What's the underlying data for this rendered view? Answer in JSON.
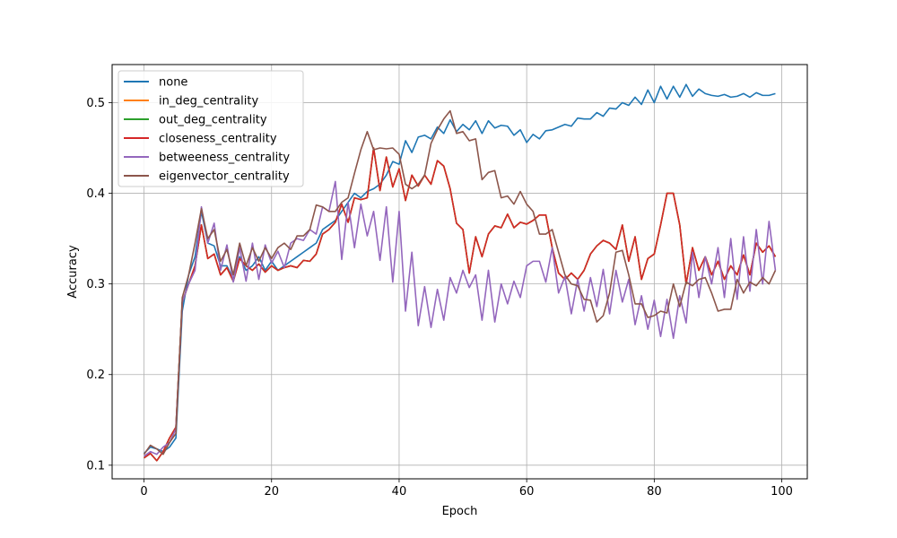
{
  "chart_data": {
    "type": "line",
    "title": "",
    "xlabel": "Epoch",
    "ylabel": "Accuracy",
    "xlim": [
      -5,
      104
    ],
    "ylim": [
      0.085,
      0.542
    ],
    "xticks": [
      0,
      20,
      40,
      60,
      80,
      100
    ],
    "yticks": [
      0.1,
      0.2,
      0.3,
      0.4,
      0.5
    ],
    "grid": true,
    "legend_position": "top-left",
    "series": [
      {
        "name": "none",
        "color": "#1f77b4",
        "values": [
          0.113,
          0.12,
          0.118,
          0.115,
          0.12,
          0.13,
          0.27,
          0.31,
          0.33,
          0.38,
          0.345,
          0.342,
          0.32,
          0.32,
          0.305,
          0.33,
          0.315,
          0.32,
          0.33,
          0.315,
          0.325,
          0.315,
          0.32,
          0.325,
          0.33,
          0.335,
          0.34,
          0.345,
          0.36,
          0.365,
          0.37,
          0.38,
          0.39,
          0.4,
          0.395,
          0.402,
          0.405,
          0.41,
          0.42,
          0.435,
          0.432,
          0.458,
          0.445,
          0.462,
          0.464,
          0.46,
          0.473,
          0.466,
          0.481,
          0.468,
          0.476,
          0.47,
          0.48,
          0.466,
          0.48,
          0.472,
          0.475,
          0.474,
          0.464,
          0.47,
          0.456,
          0.465,
          0.46,
          0.469,
          0.47,
          0.473,
          0.476,
          0.474,
          0.483,
          0.482,
          0.482,
          0.489,
          0.485,
          0.494,
          0.493,
          0.5,
          0.497,
          0.506,
          0.498,
          0.514,
          0.5,
          0.518,
          0.504,
          0.518,
          0.506,
          0.52,
          0.507,
          0.515,
          0.51,
          0.508,
          0.507,
          0.509,
          0.506,
          0.507,
          0.51,
          0.506,
          0.511,
          0.508,
          0.508,
          0.51
        ]
      },
      {
        "name": "in_deg_centrality",
        "color": "#ff7f0e",
        "values": [
          0.108,
          0.113,
          0.105,
          0.115,
          0.13,
          0.142,
          0.28,
          0.3,
          0.32,
          0.365,
          0.328,
          0.333,
          0.31,
          0.318,
          0.303,
          0.328,
          0.32,
          0.315,
          0.322,
          0.313,
          0.32,
          0.315,
          0.318,
          0.32,
          0.318,
          0.326,
          0.325,
          0.333,
          0.355,
          0.36,
          0.368,
          0.388,
          0.368,
          0.395,
          0.393,
          0.395,
          0.45,
          0.403,
          0.44,
          0.407,
          0.427,
          0.392,
          0.42,
          0.408,
          0.42,
          0.41,
          0.436,
          0.43,
          0.405,
          0.367,
          0.36,
          0.312,
          0.352,
          0.33,
          0.355,
          0.364,
          0.362,
          0.377,
          0.362,
          0.368,
          0.366,
          0.37,
          0.376,
          0.376,
          0.34,
          0.312,
          0.305,
          0.312,
          0.305,
          0.315,
          0.333,
          0.342,
          0.348,
          0.345,
          0.338,
          0.365,
          0.325,
          0.352,
          0.305,
          0.328,
          0.333,
          0.365,
          0.4,
          0.4,
          0.365,
          0.3,
          0.34,
          0.315,
          0.33,
          0.31,
          0.325,
          0.305,
          0.32,
          0.31,
          0.332,
          0.31,
          0.345,
          0.335,
          0.342,
          0.33
        ]
      },
      {
        "name": "out_deg_centrality",
        "color": "#2ca02c",
        "values": [
          0.108,
          0.113,
          0.105,
          0.115,
          0.13,
          0.142,
          0.28,
          0.3,
          0.32,
          0.365,
          0.328,
          0.333,
          0.31,
          0.318,
          0.303,
          0.328,
          0.32,
          0.315,
          0.322,
          0.313,
          0.32,
          0.315,
          0.318,
          0.32,
          0.318,
          0.326,
          0.325,
          0.333,
          0.355,
          0.36,
          0.368,
          0.388,
          0.368,
          0.395,
          0.393,
          0.395,
          0.45,
          0.403,
          0.44,
          0.407,
          0.427,
          0.392,
          0.42,
          0.408,
          0.42,
          0.41,
          0.436,
          0.43,
          0.405,
          0.367,
          0.36,
          0.312,
          0.352,
          0.33,
          0.355,
          0.364,
          0.362,
          0.377,
          0.362,
          0.368,
          0.366,
          0.37,
          0.376,
          0.376,
          0.34,
          0.312,
          0.305,
          0.312,
          0.305,
          0.315,
          0.333,
          0.342,
          0.348,
          0.345,
          0.338,
          0.365,
          0.325,
          0.352,
          0.305,
          0.328,
          0.333,
          0.365,
          0.4,
          0.4,
          0.365,
          0.3,
          0.34,
          0.315,
          0.33,
          0.31,
          0.325,
          0.305,
          0.32,
          0.31,
          0.332,
          0.31,
          0.345,
          0.335,
          0.342,
          0.33
        ]
      },
      {
        "name": "closeness_centrality",
        "color": "#d62728",
        "values": [
          0.108,
          0.113,
          0.105,
          0.115,
          0.13,
          0.142,
          0.28,
          0.3,
          0.32,
          0.365,
          0.328,
          0.333,
          0.31,
          0.318,
          0.303,
          0.328,
          0.32,
          0.315,
          0.322,
          0.313,
          0.32,
          0.315,
          0.318,
          0.32,
          0.318,
          0.326,
          0.325,
          0.333,
          0.355,
          0.36,
          0.368,
          0.388,
          0.368,
          0.395,
          0.393,
          0.395,
          0.45,
          0.403,
          0.44,
          0.407,
          0.427,
          0.392,
          0.42,
          0.408,
          0.42,
          0.41,
          0.436,
          0.43,
          0.405,
          0.367,
          0.36,
          0.312,
          0.352,
          0.33,
          0.355,
          0.364,
          0.362,
          0.377,
          0.362,
          0.368,
          0.366,
          0.37,
          0.376,
          0.376,
          0.34,
          0.312,
          0.305,
          0.312,
          0.305,
          0.315,
          0.333,
          0.342,
          0.348,
          0.345,
          0.338,
          0.365,
          0.325,
          0.352,
          0.305,
          0.328,
          0.333,
          0.365,
          0.4,
          0.4,
          0.365,
          0.3,
          0.34,
          0.315,
          0.33,
          0.31,
          0.325,
          0.305,
          0.32,
          0.31,
          0.332,
          0.31,
          0.345,
          0.335,
          0.342,
          0.33
        ]
      },
      {
        "name": "betweeness_centrality",
        "color": "#9467bd",
        "values": [
          0.11,
          0.115,
          0.112,
          0.12,
          0.125,
          0.14,
          0.28,
          0.3,
          0.315,
          0.385,
          0.345,
          0.367,
          0.315,
          0.343,
          0.302,
          0.34,
          0.303,
          0.345,
          0.305,
          0.343,
          0.323,
          0.336,
          0.318,
          0.345,
          0.35,
          0.348,
          0.36,
          0.355,
          0.385,
          0.38,
          0.413,
          0.327,
          0.39,
          0.34,
          0.388,
          0.353,
          0.38,
          0.326,
          0.385,
          0.302,
          0.38,
          0.27,
          0.335,
          0.254,
          0.297,
          0.252,
          0.294,
          0.26,
          0.307,
          0.29,
          0.315,
          0.296,
          0.31,
          0.26,
          0.315,
          0.258,
          0.3,
          0.278,
          0.303,
          0.285,
          0.32,
          0.325,
          0.325,
          0.302,
          0.34,
          0.29,
          0.308,
          0.267,
          0.305,
          0.27,
          0.307,
          0.275,
          0.316,
          0.267,
          0.315,
          0.28,
          0.305,
          0.255,
          0.287,
          0.25,
          0.282,
          0.242,
          0.283,
          0.24,
          0.287,
          0.257,
          0.335,
          0.285,
          0.33,
          0.3,
          0.34,
          0.285,
          0.35,
          0.283,
          0.352,
          0.292,
          0.36,
          0.3,
          0.369,
          0.315
        ]
      },
      {
        "name": "eigenvector_centrality",
        "color": "#8c564b",
        "values": [
          0.112,
          0.122,
          0.118,
          0.112,
          0.125,
          0.135,
          0.285,
          0.31,
          0.345,
          0.383,
          0.35,
          0.36,
          0.325,
          0.338,
          0.31,
          0.345,
          0.32,
          0.34,
          0.325,
          0.34,
          0.328,
          0.34,
          0.345,
          0.338,
          0.353,
          0.353,
          0.36,
          0.387,
          0.385,
          0.38,
          0.38,
          0.39,
          0.395,
          0.422,
          0.448,
          0.468,
          0.448,
          0.45,
          0.449,
          0.45,
          0.443,
          0.41,
          0.405,
          0.41,
          0.42,
          0.455,
          0.47,
          0.482,
          0.491,
          0.466,
          0.468,
          0.458,
          0.46,
          0.415,
          0.423,
          0.425,
          0.395,
          0.397,
          0.388,
          0.402,
          0.388,
          0.38,
          0.355,
          0.355,
          0.36,
          0.335,
          0.31,
          0.3,
          0.298,
          0.283,
          0.282,
          0.258,
          0.265,
          0.29,
          0.335,
          0.337,
          0.31,
          0.278,
          0.278,
          0.263,
          0.265,
          0.27,
          0.268,
          0.3,
          0.275,
          0.302,
          0.298,
          0.305,
          0.307,
          0.29,
          0.27,
          0.272,
          0.272,
          0.305,
          0.29,
          0.302,
          0.298,
          0.307,
          0.3,
          0.315
        ]
      }
    ]
  }
}
